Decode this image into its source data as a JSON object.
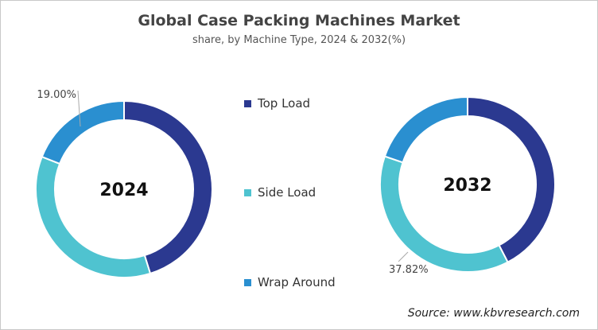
{
  "chart_data": [
    {
      "type": "pie",
      "variant": "donut",
      "title": "Global Case Packing Machines Market",
      "subtitle": "share, by Machine Type, 2024 & 2032(%)",
      "center_label": "2024",
      "categories": [
        "Top Load",
        "Side Load",
        "Wrap Around"
      ],
      "values": [
        45.2,
        35.8,
        19.0
      ],
      "data_labels": [
        {
          "category": "Wrap Around",
          "text": "19.00%"
        }
      ],
      "colors": [
        "#2b3990",
        "#4fc3d0",
        "#2a8fd0"
      ]
    },
    {
      "type": "pie",
      "variant": "donut",
      "center_label": "2032",
      "categories": [
        "Top Load",
        "Side Load",
        "Wrap Around"
      ],
      "values": [
        42.4,
        37.82,
        19.78
      ],
      "data_labels": [
        {
          "category": "Side Load",
          "text": "37.82%"
        }
      ],
      "colors": [
        "#2b3990",
        "#4fc3d0",
        "#2a8fd0"
      ]
    }
  ],
  "header": {
    "title": "Global Case Packing Machines Market",
    "subtitle": "share, by Machine Type, 2024 & 2032(%)"
  },
  "legend": {
    "placement": "center",
    "items": [
      {
        "label": "Top Load",
        "color": "#2b3990"
      },
      {
        "label": "Side Load",
        "color": "#4fc3d0"
      },
      {
        "label": "Wrap Around",
        "color": "#2a8fd0"
      }
    ]
  },
  "source": "Source: www.kbvresearch.com"
}
